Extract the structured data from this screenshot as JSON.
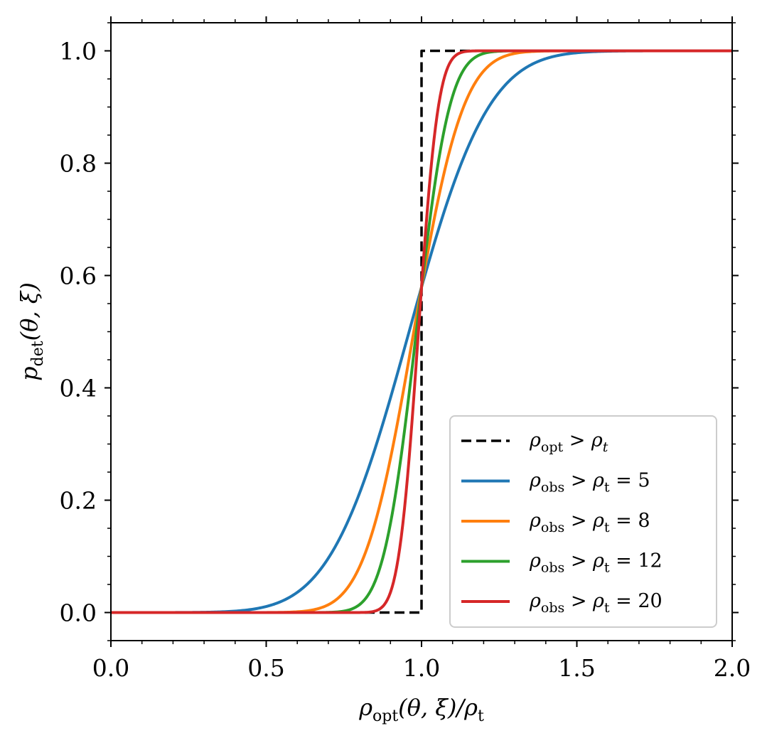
{
  "chart_data": {
    "type": "line",
    "xlabel": {
      "sym": "ρ",
      "sub": "opt",
      "rest": "(θ, ξ)/ρ",
      "sub2": "t"
    },
    "ylabel": {
      "sym": "p",
      "sub": "det",
      "rest": "(θ, ξ)"
    },
    "xlim": [
      0.0,
      2.0
    ],
    "ylim": [
      -0.05,
      1.05
    ],
    "xticks": [
      0.0,
      0.5,
      1.0,
      1.5,
      2.0
    ],
    "xtick_labels": [
      "0.0",
      "0.5",
      "1.0",
      "1.5",
      "2.0"
    ],
    "yticks": [
      0.0,
      0.2,
      0.4,
      0.6,
      0.8,
      1.0
    ],
    "ytick_labels": [
      "0.0",
      "0.2",
      "0.4",
      "0.6",
      "0.8",
      "1.0"
    ],
    "legend_position": "lower-right",
    "series": [
      {
        "name": "ρopt > ρt",
        "legend": {
          "a": "ρ",
          "asub": "opt",
          "op": " > ",
          "b": "ρ",
          "bsub": "t",
          "bsub_italic": true,
          "tail": ""
        },
        "color": "#000000",
        "dashed": true,
        "x": [
          0.0,
          0.85,
          1.0,
          1.0,
          1.15,
          2.0
        ],
        "y": [
          0.0,
          0.0,
          0.0,
          1.0,
          1.0,
          1.0
        ]
      },
      {
        "name": "ρobs > ρt = 5",
        "legend": {
          "a": "ρ",
          "asub": "obs",
          "op": " > ",
          "b": "ρ",
          "bsub": "t",
          "bsub_italic": false,
          "tail": " = 5"
        },
        "color": "#1f77b4",
        "dashed": false,
        "rho_t": 5
      },
      {
        "name": "ρobs > ρt = 8",
        "legend": {
          "a": "ρ",
          "asub": "obs",
          "op": " > ",
          "b": "ρ",
          "bsub": "t",
          "bsub_italic": false,
          "tail": " = 8"
        },
        "color": "#ff7f0e",
        "dashed": false,
        "rho_t": 8
      },
      {
        "name": "ρobs > ρt = 12",
        "legend": {
          "a": "ρ",
          "asub": "obs",
          "op": " > ",
          "b": "ρ",
          "bsub": "t",
          "bsub_italic": false,
          "tail": " = 12"
        },
        "color": "#2ca02c",
        "dashed": false,
        "rho_t": 12
      },
      {
        "name": "ρobs > ρt = 20",
        "legend": {
          "a": "ρ",
          "asub": "obs",
          "op": " > ",
          "b": "ρ",
          "bsub": "t",
          "bsub_italic": false,
          "tail": " = 20"
        },
        "color": "#d62728",
        "dashed": false,
        "rho_t": 20
      }
    ]
  }
}
